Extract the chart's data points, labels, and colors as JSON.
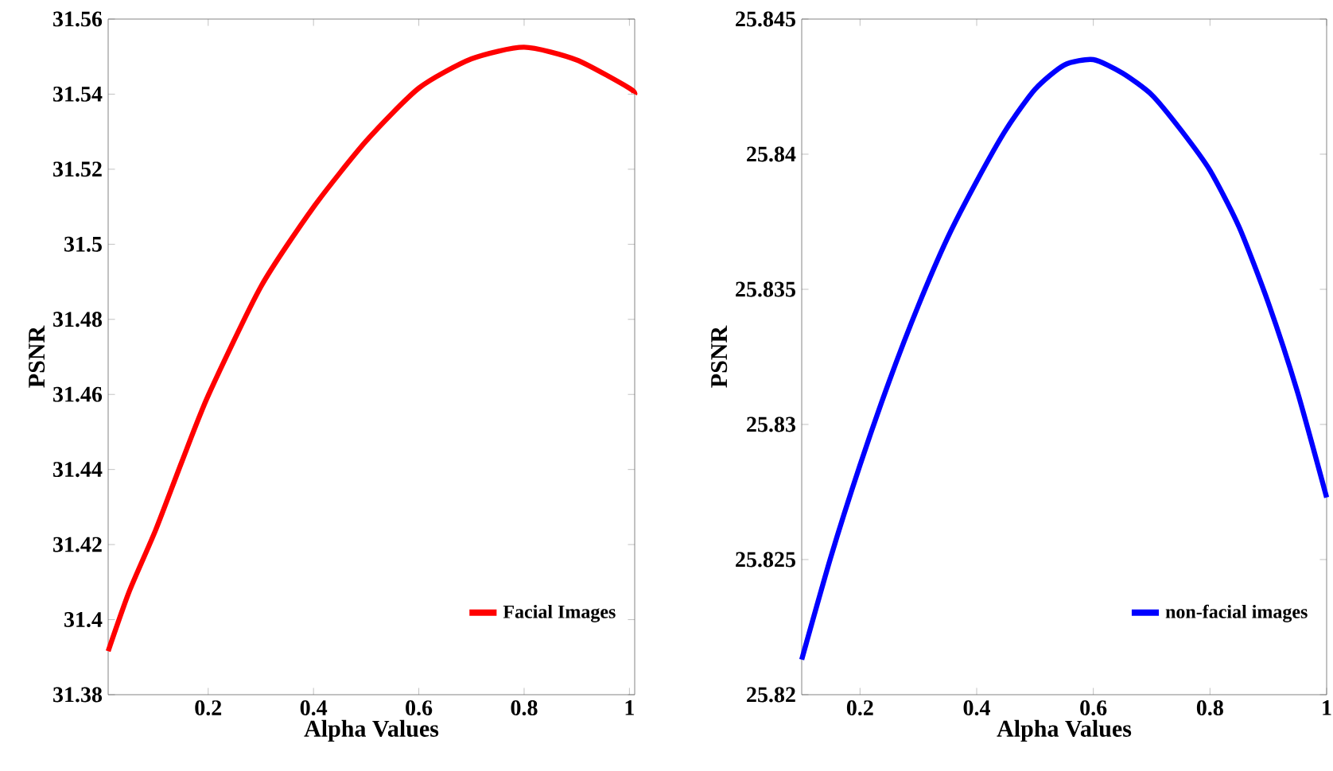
{
  "chart_data": [
    {
      "type": "line",
      "xlabel": "Alpha Values",
      "ylabel": "PSNR",
      "xlim": [
        0.01,
        1.01
      ],
      "ylim": [
        31.38,
        31.56
      ],
      "xticks": [
        0.2,
        0.4,
        0.6,
        0.8,
        1
      ],
      "yticks": [
        31.38,
        31.4,
        31.42,
        31.44,
        31.46,
        31.48,
        31.5,
        31.52,
        31.54,
        31.56
      ],
      "legend": "bottom right",
      "line_style": "solid",
      "x": [
        0.01,
        0.05,
        0.1,
        0.15,
        0.2,
        0.3,
        0.4,
        0.5,
        0.6,
        0.7,
        0.8,
        0.9,
        1.0,
        1.01
      ],
      "series": [
        {
          "name": "Facial Images",
          "color": "#ff0000",
          "values": [
            31.3916,
            31.4075,
            31.4238,
            31.4421,
            31.4597,
            31.4887,
            31.5099,
            31.5275,
            31.5416,
            31.5494,
            31.5525,
            31.5491,
            31.5416,
            31.54
          ]
        }
      ]
    },
    {
      "type": "line",
      "xlabel": "Alpha Values",
      "ylabel": "PSNR",
      "xlim": [
        0.1,
        1
      ],
      "ylim": [
        25.82,
        25.845
      ],
      "xticks": [
        0.2,
        0.4,
        0.6,
        0.8,
        1
      ],
      "yticks": [
        25.82,
        25.825,
        25.83,
        25.835,
        25.84,
        25.845
      ],
      "legend": "bottom right",
      "line_style": "solid",
      "x": [
        0.1,
        0.15,
        0.2,
        0.25,
        0.3,
        0.35,
        0.4,
        0.45,
        0.5,
        0.55,
        0.6,
        0.65,
        0.7,
        0.75,
        0.8,
        0.85,
        0.9,
        0.95,
        1.0
      ],
      "series": [
        {
          "name": "non-facial images",
          "color": "#0000ff",
          "values": [
            25.8213,
            25.8251,
            25.8285,
            25.8316,
            25.8344,
            25.8369,
            25.839,
            25.8409,
            25.8424,
            25.8433,
            25.8435,
            25.843,
            25.8422,
            25.8409,
            25.8394,
            25.8373,
            25.8345,
            25.8312,
            25.8273
          ]
        }
      ]
    }
  ]
}
